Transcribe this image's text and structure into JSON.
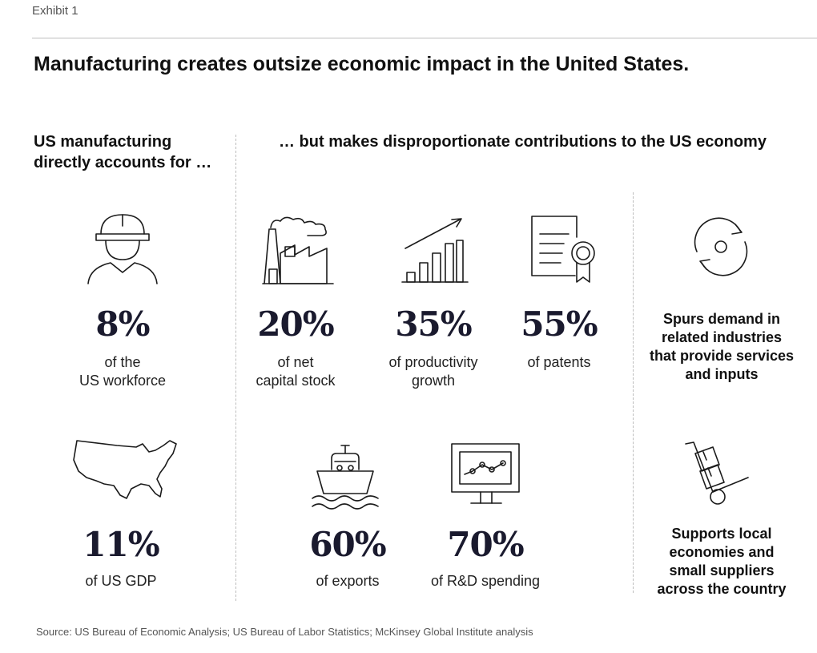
{
  "exhibit_label": "Exhibit 1",
  "title": "Manufacturing creates outsize economic impact in the United States.",
  "left_heading": [
    "US manufacturing",
    "directly accounts for …"
  ],
  "right_heading": "… but makes disproportionate contributions to the US economy",
  "chart_data": {
    "type": "table",
    "title": "Manufacturing creates outsize economic impact in the United States.",
    "direct_share": [
      {
        "value": 8,
        "unit": "%",
        "display": "8%",
        "label": [
          "of the",
          "US workforce"
        ],
        "icon": "worker-icon"
      },
      {
        "value": 11,
        "unit": "%",
        "display": "11%",
        "label": [
          "of US GDP"
        ],
        "icon": "us-map-icon"
      }
    ],
    "contributions": [
      {
        "value": 20,
        "unit": "%",
        "display": "20%",
        "label": [
          "of net",
          "capital stock"
        ],
        "icon": "factory-icon"
      },
      {
        "value": 35,
        "unit": "%",
        "display": "35%",
        "label": [
          "of productivity",
          "growth"
        ],
        "icon": "growth-chart-icon"
      },
      {
        "value": 55,
        "unit": "%",
        "display": "55%",
        "label": [
          "of patents"
        ],
        "icon": "certificate-icon"
      },
      {
        "value": 60,
        "unit": "%",
        "display": "60%",
        "label": [
          "of exports"
        ],
        "icon": "ship-icon"
      },
      {
        "value": 70,
        "unit": "%",
        "display": "70%",
        "label": [
          "of R&D spending"
        ],
        "icon": "monitor-chart-icon"
      }
    ],
    "other_effects": [
      {
        "text": [
          "Spurs demand in",
          "related industries",
          "that provide services",
          "and inputs"
        ],
        "icon": "cycle-icon"
      },
      {
        "text": [
          "Supports local",
          "economies and",
          "small suppliers",
          "across the country"
        ],
        "icon": "hand-truck-icon"
      }
    ]
  },
  "source": "Source: US Bureau of Economic Analysis; US Bureau of Labor Statistics; McKinsey Global Institute analysis",
  "colors": {
    "text": "#111111",
    "stat": "#1a1a2e",
    "muted": "#555555",
    "rule": "#bdbdbd"
  }
}
